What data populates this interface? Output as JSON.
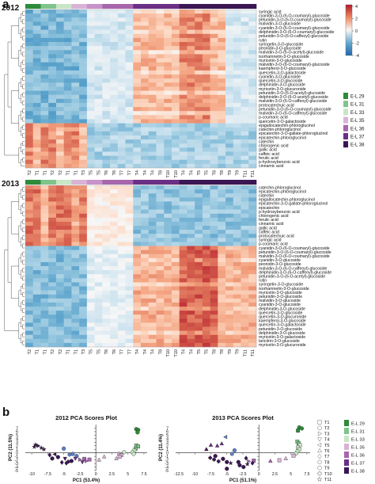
{
  "panel_labels": {
    "a": "a",
    "b": "b"
  },
  "heatmap_2012": {
    "year_label": "2012",
    "timepoints": [
      "T2",
      "T1",
      "T1",
      "T2",
      "T2",
      "T1",
      "T1",
      "T3",
      "T5",
      "T5",
      "T6",
      "T6",
      "T7",
      "T7",
      "T4",
      "T4",
      "T4",
      "T8",
      "T10",
      "T10",
      "T4",
      "T4",
      "T5",
      "T5",
      "T8",
      "T8",
      "T9",
      "T9",
      "T11",
      "T11"
    ],
    "compounds": [
      "syringic acid",
      "cyanidin-3-O-(6-O-coumaryl)-glucoside",
      "petunidin-3-O-(6-O-coumaryl)-glucoside",
      "malvidin-3-O-glucoside",
      "cyanidin-3-O-(6-O-coumaryl)-glucoside",
      "delphinidin-3-O-(6-O-coumaryl)-glucoside",
      "petunidin-3-O-(6-O-caffeoyl)-glucoside",
      "rutin",
      "syringetin-3-O-glucoside",
      "peonidin-3-O-glucoside",
      "malvidin-3-O-(6-O-acetyl)-glucoside",
      "isorhamnetin-3-O-glucoside",
      "myricetin-3-O-glucoside",
      "malvidin-3-O-(6-O-coumaryl)-glucoside",
      "kaempferol-3-O-glucoside",
      "quercetin-3-O-galactoside",
      "cyanidin-3-O-glucoside",
      "quercetin-3-O-glucoside",
      "delphinidin-3-O-glucoside",
      "myricetin-3-O-glucuronide",
      "petunidin-3-O-(6-O-acetyl)-glucoside",
      "delphinidin-3-O-(6-O-acetyl)-glucoside",
      "malvidin-3-O-(6-O-caffeoyl)-glucoside",
      "protocatechuic acid",
      "petunidin-3-O-(6-O-coumaryl)-glucoside",
      "malvidin-3-O-(6-O-caffeoyl)-glucoside",
      "p-coumaric acid",
      "quercetin-3-O-galactoside",
      "epigallocatechin-phloroglucinol",
      "catechin-phloroglucinol",
      "epicatechin-3-O-gallate-phloroglucinol",
      "epicatechin-phloroglucinol",
      "catechin",
      "chlorogenic acid",
      "gallic acid",
      "caffeic acid",
      "ferulic acid",
      "p-hydroxybenzoic acid",
      "cinnamic acid"
    ]
  },
  "heatmap_2013": {
    "year_label": "2013",
    "timepoints": [
      "T2",
      "T1",
      "T1",
      "T2",
      "T2",
      "T1",
      "T1",
      "T3",
      "T5",
      "T5",
      "T6",
      "T6",
      "T7",
      "T7",
      "T4",
      "T4",
      "T4",
      "T8",
      "T10",
      "T10",
      "T4",
      "T4",
      "T5",
      "T5",
      "T8",
      "T8",
      "T9",
      "T9",
      "T11",
      "T11"
    ],
    "compounds": [
      "catechin-phloroglucinol",
      "epicatechin-phloroglucinol",
      "catechin",
      "epigallocatechin-phloroglucinol",
      "epicatechin-3-O-gallate-phloroglucinol",
      "epicatechin",
      "p-hydroxybenzoic acid",
      "chlorogenic acid",
      "ferulic acid",
      "cinnamic acid",
      "gallic acid",
      "caffeic acid",
      "protocatechuic acid",
      "syringic acid",
      "p-coumaric acid",
      "cyanidin-3-O-(6-O-coumaryl)-glucoside",
      "petunidin-3-O-(6-O-coumaryl)-glucoside",
      "malvidin-3-O-(6-O-coumaryl)-glucoside",
      "cyanidin-3-O-glucoside",
      "peonidin-3-O-glucoside",
      "malvidin-3-O-(6-O-caffeoyl)-glucoside",
      "delphinidin-3-O-(6-O-caffeoyl)-glucoside",
      "petunidin-3-O-(6-O-acetyl)-glucoside",
      "rutin",
      "syringetin-3-O-glucoside",
      "isorhamnetin-3-O-glucoside",
      "myricetin-3-O-glucoside",
      "petunidin-3-O-glucoside",
      "malvidin-3-O-glucoside",
      "cyanidin-3-O-glucoside",
      "delphinidin-3-O-glucoside",
      "quercetin-3-O-glucoside",
      "quercetin-3-O-glucuronide",
      "kaempferol-3-O-glucoside",
      "quercetin-3-O-galactoside",
      "petunidin-3-O-glucoside",
      "delphinidin-3-O-glucoside",
      "myricetin-3-O-galactoside",
      "laricitrin-3-O-glucoside",
      "myricetin-3-O-glucuronide"
    ]
  },
  "color_scale": {
    "ticks": [
      "4",
      "2",
      "0",
      "-2",
      "-4"
    ]
  },
  "vineyard_legend": [
    {
      "label": "E-L 29",
      "color": "#2e8b3a"
    },
    {
      "label": "E-L 31",
      "color": "#7fc48a"
    },
    {
      "label": "E-L 33",
      "color": "#c9e6c6"
    },
    {
      "label": "E-L 35",
      "color": "#d9b3d6"
    },
    {
      "label": "E-L 36",
      "color": "#a866ad"
    },
    {
      "label": "E-L 37",
      "color": "#6b2f86"
    },
    {
      "label": "E-L 38",
      "color": "#3a1654"
    }
  ],
  "shape_legend": [
    {
      "label": "T1",
      "icon": "square-icon"
    },
    {
      "label": "T2",
      "icon": "circle-icon"
    },
    {
      "label": "T3",
      "icon": "triangle-right-icon"
    },
    {
      "label": "T4",
      "icon": "triangle-down-icon"
    },
    {
      "label": "T5",
      "icon": "triangle-left-icon"
    },
    {
      "label": "T6",
      "icon": "triangle-up-icon"
    },
    {
      "label": "T7",
      "icon": "diamond-icon"
    },
    {
      "label": "T8",
      "icon": "hexagon-icon"
    },
    {
      "label": "T9",
      "icon": "circle-icon"
    },
    {
      "label": "T10",
      "icon": "cross-icon"
    },
    {
      "label": "T11",
      "icon": "star-icon"
    }
  ],
  "chart_data": [
    {
      "type": "scatter",
      "title": "2012 PCA Scores Plot",
      "xlabel": "PC1 (53.4%)",
      "ylabel": "PC2 (11.5%)",
      "xlim": [
        -11,
        8
      ],
      "ylim": [
        -5,
        8
      ],
      "xticks": [
        "-10",
        "-7.5",
        "-5",
        "-2.5",
        "0",
        "2.5",
        "5",
        "7.5"
      ],
      "yticks": [
        "7",
        "6",
        "5",
        "4",
        "3",
        "2",
        "1",
        "0",
        "-1",
        "-2",
        "-3",
        "-4",
        "-5"
      ],
      "points": [
        {
          "x": 6.3,
          "y": 6.7,
          "marker": "circle",
          "color": "#2e8b3a"
        },
        {
          "x": 6.6,
          "y": 6.5,
          "marker": "circle",
          "color": "#2e8b3a"
        },
        {
          "x": 6.5,
          "y": 5.8,
          "marker": "circle",
          "color": "#2e8b3a"
        },
        {
          "x": 6.3,
          "y": 2.1,
          "marker": "square",
          "color": "#7fc48a"
        },
        {
          "x": 6.6,
          "y": 1.8,
          "marker": "square",
          "color": "#7fc48a"
        },
        {
          "x": 6.2,
          "y": 1.2,
          "marker": "square",
          "color": "#7fc48a"
        },
        {
          "x": 6.0,
          "y": 0.6,
          "marker": "square",
          "color": "#c9e6c6"
        },
        {
          "x": 5.7,
          "y": 0.2,
          "marker": "circle",
          "color": "#c9e6c6"
        },
        {
          "x": 5.9,
          "y": -0.3,
          "marker": "circle",
          "color": "#c9e6c6"
        },
        {
          "x": 4.4,
          "y": 0.2,
          "marker": "circle",
          "color": "#c9e6c6"
        },
        {
          "x": 3.6,
          "y": -0.2,
          "marker": "triangle-up",
          "color": "#d9b3d6"
        },
        {
          "x": 4.0,
          "y": -0.6,
          "marker": "square",
          "color": "#d9b3d6"
        },
        {
          "x": 3.7,
          "y": -1.1,
          "marker": "square",
          "color": "#d9b3d6"
        },
        {
          "x": 3.2,
          "y": -1.6,
          "marker": "triangle-up",
          "color": "#d9b3d6"
        },
        {
          "x": 0.5,
          "y": -2.0,
          "marker": "triangle-up",
          "color": "#d9b3d6"
        },
        {
          "x": 1.3,
          "y": -1.1,
          "marker": "triangle-up",
          "color": "#d9b3d6"
        },
        {
          "x": -1.0,
          "y": -1.9,
          "marker": "square",
          "color": "#a866ad"
        },
        {
          "x": -1.8,
          "y": -1.7,
          "marker": "square",
          "color": "#a866ad"
        },
        {
          "x": -1.5,
          "y": -2.3,
          "marker": "triangle-right",
          "color": "#a866ad"
        },
        {
          "x": -2.5,
          "y": -1.9,
          "marker": "triangle-right",
          "color": "#a866ad"
        },
        {
          "x": -3.0,
          "y": -0.9,
          "marker": "circle",
          "color": "#5b7fc7"
        },
        {
          "x": -3.6,
          "y": -0.3,
          "marker": "circle",
          "color": "#5b7fc7"
        },
        {
          "x": -5.0,
          "y": 1.2,
          "marker": "circle",
          "color": "#5b7fc7"
        },
        {
          "x": -4.1,
          "y": -0.5,
          "marker": "hexagon",
          "color": "#5b7fc7"
        },
        {
          "x": -3.2,
          "y": -1.6,
          "marker": "triangle-down",
          "color": "#6b2f86"
        },
        {
          "x": -2.1,
          "y": -2.6,
          "marker": "triangle-down",
          "color": "#6b2f86"
        },
        {
          "x": -6.8,
          "y": -1.6,
          "marker": "circle",
          "color": "#3a1654"
        },
        {
          "x": -5.9,
          "y": -1.2,
          "marker": "circle",
          "color": "#3a1654"
        },
        {
          "x": -5.3,
          "y": -2.7,
          "marker": "diamond",
          "color": "#3a1654"
        },
        {
          "x": -4.6,
          "y": -2.9,
          "marker": "diamond",
          "color": "#3a1654"
        },
        {
          "x": -4.3,
          "y": -2.5,
          "marker": "cross",
          "color": "#3a1654"
        },
        {
          "x": -3.8,
          "y": -2.3,
          "marker": "circle",
          "color": "#3a1654"
        },
        {
          "x": -4.8,
          "y": -1.6,
          "marker": "triangle-down",
          "color": "#3a1654"
        },
        {
          "x": -6.4,
          "y": -0.4,
          "marker": "triangle-left",
          "color": "#3a1654"
        },
        {
          "x": -7.2,
          "y": -0.6,
          "marker": "diamond",
          "color": "#3a1654"
        },
        {
          "x": -8.1,
          "y": 1.0,
          "marker": "star",
          "color": "#3a1654"
        },
        {
          "x": -8.5,
          "y": 1.4,
          "marker": "star",
          "color": "#3a1654"
        },
        {
          "x": -9.0,
          "y": 2.0,
          "marker": "triangle-right",
          "color": "#3a1654"
        },
        {
          "x": -9.4,
          "y": 2.3,
          "marker": "star",
          "color": "#3a1654"
        },
        {
          "x": -9.6,
          "y": 1.7,
          "marker": "star",
          "color": "#3a1654"
        }
      ]
    },
    {
      "type": "scatter",
      "title": "2013 PCA Scores Plot",
      "xlabel": "PC1 (51.1%)",
      "ylabel": "PC2 (11.4%)",
      "xlim": [
        -13,
        8
      ],
      "ylim": [
        -5,
        8
      ],
      "xticks": [
        "-12.5",
        "-10",
        "-7.5",
        "-5",
        "-2.5",
        "0",
        "2.5",
        "5",
        "7.5"
      ],
      "yticks": [
        "7",
        "6",
        "5",
        "4",
        "3",
        "2",
        "1",
        "0",
        "-1",
        "-2",
        "-3",
        "-4",
        "-5"
      ],
      "points": [
        {
          "x": 6.3,
          "y": 7.2,
          "marker": "circle",
          "color": "#2e8b3a"
        },
        {
          "x": 6.7,
          "y": 6.9,
          "marker": "circle",
          "color": "#2e8b3a"
        },
        {
          "x": 6.1,
          "y": 6.3,
          "marker": "square",
          "color": "#2e8b3a"
        },
        {
          "x": 6.0,
          "y": 3.2,
          "marker": "square",
          "color": "#7fc48a"
        },
        {
          "x": 6.2,
          "y": 2.7,
          "marker": "square",
          "color": "#7fc48a"
        },
        {
          "x": 6.4,
          "y": 2.2,
          "marker": "square",
          "color": "#c9e6c6"
        },
        {
          "x": 6.1,
          "y": 1.5,
          "marker": "square",
          "color": "#c9e6c6"
        },
        {
          "x": 6.3,
          "y": 1.0,
          "marker": "square",
          "color": "#c9e6c6"
        },
        {
          "x": 6.0,
          "y": 0.4,
          "marker": "circle",
          "color": "#c9e6c6"
        },
        {
          "x": 5.8,
          "y": -0.2,
          "marker": "circle",
          "color": "#c9e6c6"
        },
        {
          "x": 5.4,
          "y": -0.8,
          "marker": "square",
          "color": "#d9b3d6"
        },
        {
          "x": 4.2,
          "y": -1.6,
          "marker": "triangle-up",
          "color": "#d9b3d6"
        },
        {
          "x": 3.2,
          "y": -2.1,
          "marker": "square",
          "color": "#d9b3d6"
        },
        {
          "x": 1.8,
          "y": -2.3,
          "marker": "triangle-up",
          "color": "#a866ad"
        },
        {
          "x": -0.8,
          "y": -2.2,
          "marker": "square",
          "color": "#a866ad"
        },
        {
          "x": -1.6,
          "y": -2.4,
          "marker": "triangle-right",
          "color": "#a866ad"
        },
        {
          "x": -3.8,
          "y": 0.7,
          "marker": "circle",
          "color": "#5b7fc7"
        },
        {
          "x": -5.2,
          "y": 4.5,
          "marker": "triangle-left",
          "color": "#5b7fc7"
        },
        {
          "x": -4.2,
          "y": -0.3,
          "marker": "hexagon",
          "color": "#5b7fc7"
        },
        {
          "x": -7.5,
          "y": 2.2,
          "marker": "triangle-up",
          "color": "#6b2f86"
        },
        {
          "x": -6.5,
          "y": 2.0,
          "marker": "triangle-up",
          "color": "#6b2f86"
        },
        {
          "x": -5.8,
          "y": 2.6,
          "marker": "triangle-up",
          "color": "#6b2f86"
        },
        {
          "x": -8.2,
          "y": 1.0,
          "marker": "triangle-up",
          "color": "#3a1654"
        },
        {
          "x": -7.6,
          "y": -1.4,
          "marker": "cross",
          "color": "#3a1654"
        },
        {
          "x": -7.0,
          "y": -1.9,
          "marker": "cross",
          "color": "#3a1654"
        },
        {
          "x": -6.3,
          "y": -2.4,
          "marker": "cross",
          "color": "#3a1654"
        },
        {
          "x": -6.8,
          "y": -0.9,
          "marker": "circle",
          "color": "#3a1654"
        },
        {
          "x": -5.6,
          "y": -1.7,
          "marker": "circle",
          "color": "#3a1654"
        },
        {
          "x": -5.0,
          "y": -2.6,
          "marker": "circle",
          "color": "#3a1654"
        },
        {
          "x": -5.0,
          "y": -4.5,
          "marker": "circle",
          "color": "#3a1654"
        },
        {
          "x": -4.4,
          "y": -2.9,
          "marker": "star",
          "color": "#3a1654"
        },
        {
          "x": -3.2,
          "y": -2.6,
          "marker": "circle",
          "color": "#3a1654"
        },
        {
          "x": -3.0,
          "y": -3.5,
          "marker": "circle",
          "color": "#3a1654"
        },
        {
          "x": -2.4,
          "y": -4.0,
          "marker": "circle",
          "color": "#3a1654"
        },
        {
          "x": -1.8,
          "y": -3.2,
          "marker": "star",
          "color": "#3a1654"
        },
        {
          "x": -2.0,
          "y": -1.5,
          "marker": "diamond",
          "color": "#3a1654"
        },
        {
          "x": -1.0,
          "y": -2.9,
          "marker": "diamond",
          "color": "#3a1654"
        }
      ]
    }
  ]
}
